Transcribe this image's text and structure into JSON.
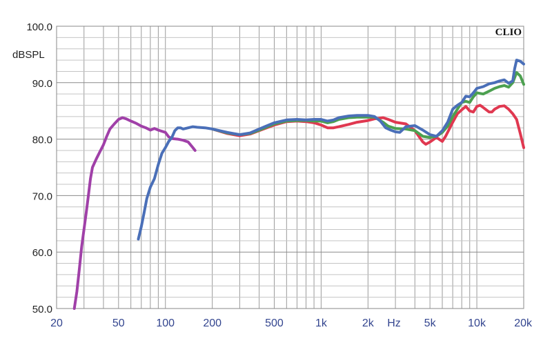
{
  "chart_data": {
    "type": "line",
    "brand": "CLIO",
    "ylabel": "dBSPL",
    "xunit": "Hz",
    "xscale": "log",
    "xlim": [
      20,
      20000
    ],
    "ylim": [
      50,
      100
    ],
    "grid": true,
    "yticks": [
      {
        "value": 100,
        "label": "100.0"
      },
      {
        "value": 90,
        "label": "90.0"
      },
      {
        "value": 80,
        "label": "80.0"
      },
      {
        "value": 70,
        "label": "70.0"
      },
      {
        "value": 60,
        "label": "60.0"
      },
      {
        "value": 50,
        "label": "50.0"
      }
    ],
    "xticks": [
      {
        "value": 20,
        "label": "20"
      },
      {
        "value": 50,
        "label": "50"
      },
      {
        "value": 100,
        "label": "100"
      },
      {
        "value": 200,
        "label": "200"
      },
      {
        "value": 500,
        "label": "500"
      },
      {
        "value": 1000,
        "label": "1k"
      },
      {
        "value": 2000,
        "label": "2k"
      },
      {
        "value": 5000,
        "label": "5k"
      },
      {
        "value": 10000,
        "label": "10k"
      },
      {
        "value": 20000,
        "label": "20k"
      }
    ],
    "series": [
      {
        "color": "#a040a8",
        "points": [
          [
            26,
            50
          ],
          [
            27,
            53
          ],
          [
            28,
            57
          ],
          [
            29,
            61
          ],
          [
            30,
            64
          ],
          [
            31,
            67
          ],
          [
            32,
            70
          ],
          [
            33,
            73
          ],
          [
            34,
            75
          ],
          [
            36,
            76.5
          ],
          [
            38,
            77.8
          ],
          [
            40,
            79
          ],
          [
            42,
            80.5
          ],
          [
            44,
            81.8
          ],
          [
            47,
            82.7
          ],
          [
            50,
            83.5
          ],
          [
            53,
            83.8
          ],
          [
            56,
            83.6
          ],
          [
            60,
            83.2
          ],
          [
            65,
            82.8
          ],
          [
            70,
            82.3
          ],
          [
            75,
            82
          ],
          [
            80,
            81.6
          ],
          [
            85,
            81.9
          ],
          [
            90,
            81.6
          ],
          [
            100,
            81.2
          ],
          [
            105,
            80.4
          ],
          [
            110,
            80.1
          ],
          [
            120,
            80
          ],
          [
            130,
            79.8
          ],
          [
            140,
            79.5
          ],
          [
            150,
            78.5
          ],
          [
            155,
            78
          ]
        ]
      },
      {
        "color": "#e03850",
        "points": [
          [
            200,
            81.8
          ],
          [
            250,
            81
          ],
          [
            300,
            80.6
          ],
          [
            350,
            80.9
          ],
          [
            400,
            81.5
          ],
          [
            500,
            82.5
          ],
          [
            600,
            83.1
          ],
          [
            700,
            83.2
          ],
          [
            800,
            83.1
          ],
          [
            900,
            82.9
          ],
          [
            1000,
            82.5
          ],
          [
            1100,
            82
          ],
          [
            1200,
            82
          ],
          [
            1300,
            82.2
          ],
          [
            1500,
            82.6
          ],
          [
            1700,
            83
          ],
          [
            2000,
            83.3
          ],
          [
            2200,
            83.6
          ],
          [
            2500,
            83.8
          ],
          [
            2700,
            83.5
          ],
          [
            3000,
            83
          ],
          [
            3500,
            82.7
          ],
          [
            4000,
            81.5
          ],
          [
            4500,
            79.5
          ],
          [
            4700,
            79.1
          ],
          [
            5000,
            79.5
          ],
          [
            5500,
            80.3
          ],
          [
            6000,
            79.6
          ],
          [
            6300,
            80.5
          ],
          [
            7000,
            83
          ],
          [
            7500,
            84.5
          ],
          [
            8000,
            85.2
          ],
          [
            8500,
            85.8
          ],
          [
            9000,
            85
          ],
          [
            9500,
            84.8
          ],
          [
            10000,
            85.8
          ],
          [
            10500,
            86
          ],
          [
            11000,
            85.6
          ],
          [
            12000,
            84.8
          ],
          [
            12500,
            84.8
          ],
          [
            13000,
            85.3
          ],
          [
            14000,
            85.8
          ],
          [
            15000,
            85.9
          ],
          [
            16000,
            85.3
          ],
          [
            17000,
            84.5
          ],
          [
            18000,
            83.5
          ],
          [
            19000,
            81
          ],
          [
            20000,
            78.5
          ]
        ]
      },
      {
        "color": "#4ca050",
        "points": [
          [
            200,
            81.8
          ],
          [
            250,
            81.1
          ],
          [
            300,
            80.8
          ],
          [
            350,
            81
          ],
          [
            400,
            81.6
          ],
          [
            500,
            82.7
          ],
          [
            600,
            83.2
          ],
          [
            700,
            83.3
          ],
          [
            800,
            83.3
          ],
          [
            900,
            83.2
          ],
          [
            1000,
            83.2
          ],
          [
            1100,
            82.9
          ],
          [
            1200,
            83.1
          ],
          [
            1300,
            83.5
          ],
          [
            1500,
            83.8
          ],
          [
            1700,
            83.9
          ],
          [
            2000,
            83.9
          ],
          [
            2200,
            83.9
          ],
          [
            2500,
            83
          ],
          [
            2700,
            82.3
          ],
          [
            3000,
            81.9
          ],
          [
            3500,
            81.8
          ],
          [
            4000,
            81.5
          ],
          [
            4500,
            80.5
          ],
          [
            5000,
            80.3
          ],
          [
            5500,
            80.5
          ],
          [
            6000,
            81.2
          ],
          [
            6500,
            82.3
          ],
          [
            7000,
            84
          ],
          [
            7500,
            85.3
          ],
          [
            8000,
            86.5
          ],
          [
            8500,
            86.7
          ],
          [
            9000,
            86.5
          ],
          [
            9500,
            87.5
          ],
          [
            10000,
            88.2
          ],
          [
            11000,
            88
          ],
          [
            12000,
            88.5
          ],
          [
            13000,
            89
          ],
          [
            14000,
            89.3
          ],
          [
            15000,
            89.5
          ],
          [
            16000,
            89.2
          ],
          [
            17000,
            90
          ],
          [
            18000,
            91.8
          ],
          [
            19000,
            91.2
          ],
          [
            20000,
            89.7
          ]
        ]
      },
      {
        "color": "#4a6fb8",
        "points": [
          [
            67,
            62.3
          ],
          [
            70,
            64.5
          ],
          [
            73,
            67
          ],
          [
            76,
            69.5
          ],
          [
            80,
            71.5
          ],
          [
            85,
            73
          ],
          [
            90,
            75.5
          ],
          [
            95,
            77.5
          ],
          [
            100,
            78.5
          ],
          [
            105,
            79.6
          ],
          [
            110,
            80.3
          ],
          [
            115,
            81.5
          ],
          [
            120,
            82
          ],
          [
            125,
            82
          ],
          [
            130,
            81.8
          ],
          [
            140,
            82
          ],
          [
            150,
            82.2
          ],
          [
            160,
            82.1
          ],
          [
            180,
            82
          ],
          [
            200,
            81.8
          ],
          [
            250,
            81.2
          ],
          [
            300,
            80.8
          ],
          [
            350,
            81.1
          ],
          [
            400,
            81.8
          ],
          [
            500,
            82.9
          ],
          [
            600,
            83.4
          ],
          [
            700,
            83.5
          ],
          [
            800,
            83.4
          ],
          [
            900,
            83.5
          ],
          [
            1000,
            83.5
          ],
          [
            1100,
            83.2
          ],
          [
            1200,
            83.4
          ],
          [
            1300,
            83.8
          ],
          [
            1500,
            84.1
          ],
          [
            1700,
            84.2
          ],
          [
            2000,
            84.2
          ],
          [
            2200,
            84
          ],
          [
            2400,
            83.2
          ],
          [
            2600,
            82
          ],
          [
            2800,
            81.6
          ],
          [
            3000,
            81.3
          ],
          [
            3200,
            81.2
          ],
          [
            3500,
            82.2
          ],
          [
            4000,
            82.4
          ],
          [
            4500,
            81.6
          ],
          [
            5000,
            80.8
          ],
          [
            5500,
            80.5
          ],
          [
            6000,
            81.5
          ],
          [
            6500,
            83
          ],
          [
            7000,
            85.3
          ],
          [
            7500,
            86
          ],
          [
            8000,
            86.5
          ],
          [
            8500,
            87.6
          ],
          [
            9000,
            87.5
          ],
          [
            9500,
            88.2
          ],
          [
            10000,
            89
          ],
          [
            11000,
            89.3
          ],
          [
            12000,
            89.8
          ],
          [
            13000,
            90
          ],
          [
            14000,
            90.3
          ],
          [
            15000,
            90.5
          ],
          [
            16000,
            89.9
          ],
          [
            17000,
            90.3
          ],
          [
            17500,
            92.5
          ],
          [
            18000,
            94
          ],
          [
            19000,
            93.8
          ],
          [
            20000,
            93.3
          ]
        ]
      }
    ]
  }
}
